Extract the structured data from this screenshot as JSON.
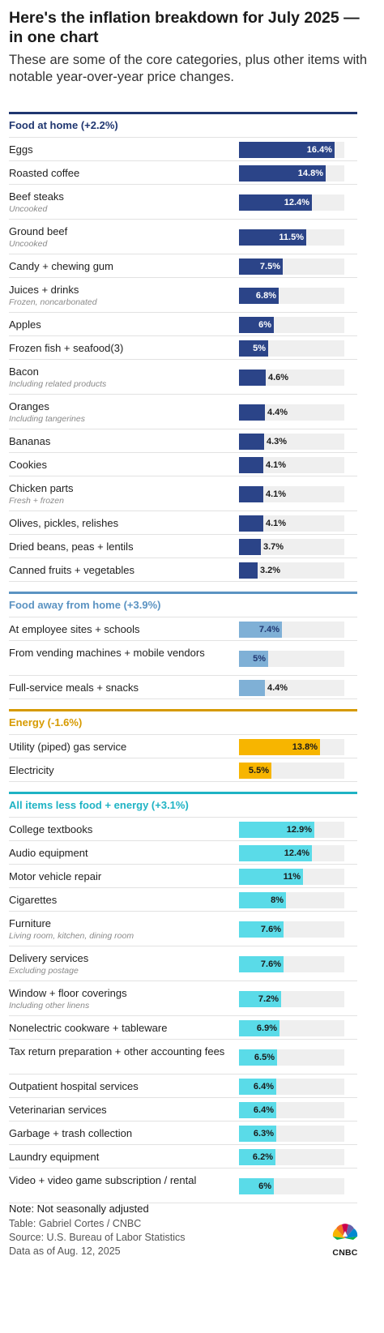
{
  "title": "Here's the inflation breakdown for July 2025 — in one chart",
  "subtitle": "These are some of the core categories, plus other items with notable year-over-year price changes.",
  "chart_data": {
    "type": "bar",
    "orientation": "horizontal",
    "xlim": [
      0,
      18
    ],
    "unit": "%",
    "sections": [
      {
        "name": "Food at home (+2.2%)",
        "color": "#2b4488",
        "label_color": "#1f3670",
        "text_on_bar": "#ffffff",
        "rows": [
          {
            "label": "Eggs",
            "sub": "",
            "value": 16.4,
            "value_label": "16.4%"
          },
          {
            "label": "Roasted coffee",
            "sub": "",
            "value": 14.8,
            "value_label": "14.8%"
          },
          {
            "label": "Beef steaks",
            "sub": "Uncooked",
            "value": 12.4,
            "value_label": "12.4%"
          },
          {
            "label": "Ground beef",
            "sub": "Uncooked",
            "value": 11.5,
            "value_label": "11.5%"
          },
          {
            "label": "Candy + chewing gum",
            "sub": "",
            "value": 7.5,
            "value_label": "7.5%"
          },
          {
            "label": "Juices + drinks",
            "sub": "Frozen, noncarbonated",
            "value": 6.8,
            "value_label": "6.8%"
          },
          {
            "label": "Apples",
            "sub": "",
            "value": 6,
            "value_label": "6%"
          },
          {
            "label": "Frozen fish + seafood(3)",
            "sub": "",
            "value": 5,
            "value_label": "5%"
          },
          {
            "label": "Bacon",
            "sub": "Including related products",
            "value": 4.6,
            "value_label": "4.6%"
          },
          {
            "label": "Oranges",
            "sub": "Including tangerines",
            "value": 4.4,
            "value_label": "4.4%"
          },
          {
            "label": "Bananas",
            "sub": "",
            "value": 4.3,
            "value_label": "4.3%"
          },
          {
            "label": "Cookies",
            "sub": "",
            "value": 4.1,
            "value_label": "4.1%"
          },
          {
            "label": "Chicken parts",
            "sub": "Fresh + frozen",
            "value": 4.1,
            "value_label": "4.1%"
          },
          {
            "label": "Olives, pickles, relishes",
            "sub": "",
            "value": 4.1,
            "value_label": "4.1%"
          },
          {
            "label": "Dried beans, peas + lentils",
            "sub": "",
            "value": 3.7,
            "value_label": "3.7%"
          },
          {
            "label": "Canned fruits + vegetables",
            "sub": "",
            "value": 3.2,
            "value_label": "3.2%"
          }
        ]
      },
      {
        "name": "Food away from home (+3.9%)",
        "color": "#7fb0d6",
        "label_color": "#5b93c2",
        "text_on_bar": "#1f3670",
        "rows": [
          {
            "label": "At employee sites + schools",
            "sub": "",
            "value": 7.4,
            "value_label": "7.4%"
          },
          {
            "label": "From vending machines + mobile vendors",
            "sub": "",
            "value": 5,
            "value_label": "5%"
          },
          {
            "label": "Full-service meals + snacks",
            "sub": "",
            "value": 4.4,
            "value_label": "4.4%"
          }
        ]
      },
      {
        "name": "Energy (-1.6%)",
        "color": "#f7b500",
        "label_color": "#d69a00",
        "text_on_bar": "#1a1a1a",
        "rows": [
          {
            "label": "Utility (piped) gas service",
            "sub": "",
            "value": 13.8,
            "value_label": "13.8%"
          },
          {
            "label": "Electricity",
            "sub": "",
            "value": 5.5,
            "value_label": "5.5%"
          }
        ]
      },
      {
        "name": "All items less food + energy (+3.1%)",
        "color": "#5adbe8",
        "label_color": "#1fb3c4",
        "text_on_bar": "#1a1a1a",
        "rows": [
          {
            "label": "College textbooks",
            "sub": "",
            "value": 12.9,
            "value_label": "12.9%"
          },
          {
            "label": "Audio equipment",
            "sub": "",
            "value": 12.4,
            "value_label": "12.4%"
          },
          {
            "label": "Motor vehicle repair",
            "sub": "",
            "value": 11,
            "value_label": "11%"
          },
          {
            "label": "Cigarettes",
            "sub": "",
            "value": 8,
            "value_label": "8%"
          },
          {
            "label": "Furniture",
            "sub": "Living room, kitchen, dining room",
            "value": 7.6,
            "value_label": "7.6%"
          },
          {
            "label": "Delivery services",
            "sub": "Excluding postage",
            "value": 7.6,
            "value_label": "7.6%"
          },
          {
            "label": "Window + floor coverings",
            "sub": "Including other linens",
            "value": 7.2,
            "value_label": "7.2%"
          },
          {
            "label": "Nonelectric cookware + tableware",
            "sub": "",
            "value": 6.9,
            "value_label": "6.9%"
          },
          {
            "label": "Tax return preparation + other accounting fees",
            "sub": "",
            "value": 6.5,
            "value_label": "6.5%"
          },
          {
            "label": "Outpatient hospital services",
            "sub": "",
            "value": 6.4,
            "value_label": "6.4%"
          },
          {
            "label": "Veterinarian services",
            "sub": "",
            "value": 6.4,
            "value_label": "6.4%"
          },
          {
            "label": "Garbage + trash collection",
            "sub": "",
            "value": 6.3,
            "value_label": "6.3%"
          },
          {
            "label": "Laundry equipment",
            "sub": "",
            "value": 6.2,
            "value_label": "6.2%"
          },
          {
            "label": "Video + video game subscription / rental",
            "sub": "",
            "value": 6,
            "value_label": "6%"
          }
        ]
      }
    ]
  },
  "footer": {
    "note": "Note: Not seasonally adjusted",
    "credit": "Table: Gabriel Cortes / CNBC",
    "source": "Source: U.S. Bureau of Labor Statistics",
    "date": "Data as of Aug. 12, 2025",
    "logo_text": "CNBC",
    "logo_icon": "peacock-logo-icon"
  }
}
